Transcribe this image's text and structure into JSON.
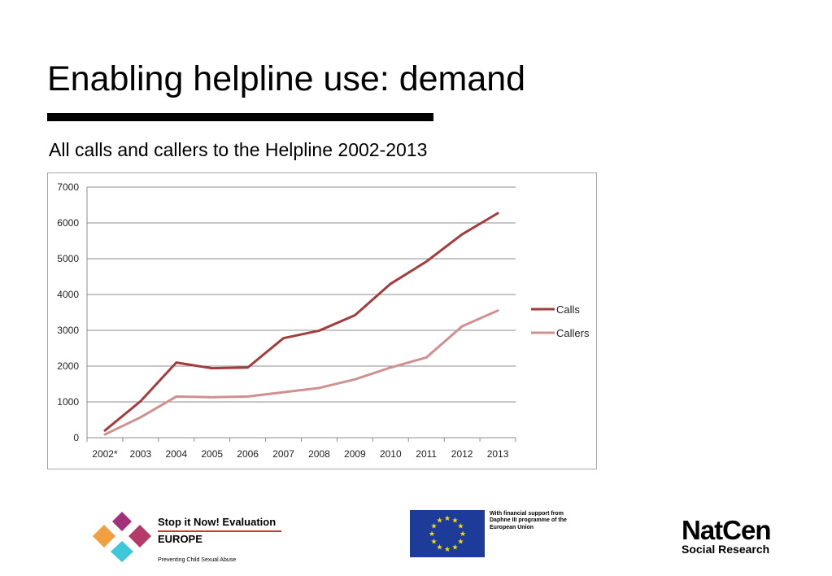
{
  "slide": {
    "title": "Enabling helpline use: demand",
    "subtitle": "All calls and callers to the Helpline 2002-2013"
  },
  "chart_data": {
    "type": "line",
    "categories": [
      "2002*",
      "2003",
      "2004",
      "2005",
      "2006",
      "2007",
      "2008",
      "2009",
      "2010",
      "2011",
      "2012",
      "2013"
    ],
    "series": [
      {
        "name": "Calls",
        "color": "#a33c3c",
        "values": [
          200,
          1020,
          2100,
          1940,
          1960,
          2780,
          2990,
          3420,
          4300,
          4920,
          5680,
          6270
        ]
      },
      {
        "name": "Callers",
        "color": "#d09090",
        "values": [
          90,
          570,
          1150,
          1130,
          1150,
          1270,
          1390,
          1630,
          1960,
          2240,
          3110,
          3550
        ]
      }
    ],
    "ylim": [
      0,
      7000
    ],
    "yticks": [
      0,
      1000,
      2000,
      3000,
      4000,
      5000,
      6000,
      7000
    ],
    "grid": true,
    "legend": "right"
  },
  "logos": {
    "stopit": {
      "title": "Stop it Now! Evaluation",
      "subtitle": "EUROPE",
      "tagline": "Preventing Child Sexual Abuse"
    },
    "eu": {
      "text": "With financial support from Daphne III programme of the European Union"
    },
    "natcen": {
      "name": "NatCen",
      "subtitle": "Social Research"
    }
  }
}
